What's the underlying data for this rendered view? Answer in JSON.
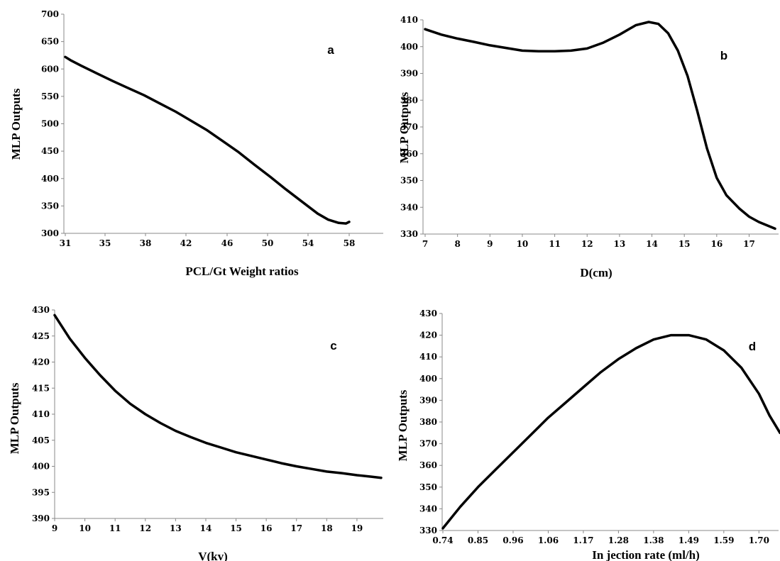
{
  "chart_data": [
    {
      "type": "line",
      "panel_label": "a",
      "xlabel": "PCL/Gt Weight ratios",
      "ylabel": "MLP Outputs",
      "x_tick_labels": [
        "31",
        "35",
        "38",
        "42",
        "46",
        "50",
        "54",
        "58"
      ],
      "y_ticks": [
        300,
        350,
        400,
        450,
        500,
        550,
        600,
        650,
        700
      ],
      "ylim": [
        300,
        700
      ],
      "series": [
        {
          "x": [
            31,
            31.5,
            32.5,
            34,
            35.5,
            37,
            38.5,
            40,
            41.5,
            43,
            44.5,
            46,
            47.5,
            49,
            50.5,
            52,
            53.5,
            55,
            56,
            57,
            57.7,
            58
          ],
          "values": [
            622,
            616,
            606,
            592,
            578,
            565,
            552,
            537,
            522,
            505,
            488,
            468,
            448,
            425,
            403,
            380,
            358,
            336,
            325,
            319,
            318,
            321
          ]
        }
      ]
    },
    {
      "type": "line",
      "panel_label": "b",
      "xlabel": "D(cm)",
      "ylabel": "MLP Outputs",
      "x_tick_labels": [
        "7",
        "8",
        "9",
        "10",
        "11",
        "12",
        "13",
        "14",
        "15",
        "16",
        "17"
      ],
      "x_tick_values": [
        7,
        8,
        9,
        10,
        11,
        12,
        13,
        14,
        15,
        16,
        17
      ],
      "xlim": [
        7,
        17.8
      ],
      "y_ticks": [
        330,
        340,
        350,
        360,
        370,
        380,
        390,
        400,
        410
      ],
      "ylim": [
        330,
        410
      ],
      "series": [
        {
          "x": [
            7,
            7.5,
            8,
            8.5,
            9,
            9.5,
            10,
            10.5,
            11,
            11.5,
            12,
            12.5,
            13,
            13.5,
            13.9,
            14.2,
            14.5,
            14.8,
            15.1,
            15.4,
            15.7,
            16,
            16.3,
            16.7,
            17,
            17.3,
            17.8
          ],
          "values": [
            406.5,
            404.5,
            403,
            401.8,
            400.5,
            399.5,
            398.5,
            398.3,
            398.3,
            398.5,
            399.3,
            401.5,
            404.5,
            408,
            409.2,
            408.5,
            405,
            398.5,
            389,
            376,
            362,
            351,
            344.5,
            339.5,
            336.5,
            334.5,
            332
          ]
        }
      ]
    },
    {
      "type": "line",
      "panel_label": "c",
      "xlabel": "V(kv)",
      "ylabel": "MLP Outputs",
      "x_tick_labels": [
        "9",
        "10",
        "11",
        "12",
        "13",
        "14",
        "15",
        "16",
        "17",
        "18",
        "19"
      ],
      "x_tick_values": [
        9,
        10,
        11,
        12,
        13,
        14,
        15,
        16,
        17,
        18,
        19
      ],
      "xlim": [
        9,
        19.8
      ],
      "y_ticks": [
        390,
        395,
        400,
        405,
        410,
        415,
        420,
        425,
        430
      ],
      "ylim": [
        390,
        430
      ],
      "series": [
        {
          "x": [
            9,
            9.5,
            10,
            10.5,
            11,
            11.5,
            12,
            12.5,
            13,
            13.5,
            14,
            14.5,
            15,
            15.5,
            16,
            16.5,
            17,
            17.5,
            18,
            18.5,
            19,
            19.5,
            19.8
          ],
          "values": [
            429,
            424.5,
            420.8,
            417.5,
            414.5,
            412,
            410,
            408.3,
            406.8,
            405.6,
            404.5,
            403.6,
            402.7,
            402,
            401.3,
            400.6,
            400,
            399.5,
            399,
            398.7,
            398.3,
            398,
            397.8
          ]
        }
      ]
    },
    {
      "type": "line",
      "panel_label": "d",
      "xlabel": "In jection rate (ml/h)",
      "ylabel": "MLP Outputs",
      "x_tick_labels": [
        "0.74",
        "0.85",
        "0.96",
        "1.06",
        "1.17",
        "1.28",
        "1.38",
        "1.49",
        "1.59",
        "1.70"
      ],
      "y_ticks": [
        330,
        340,
        350,
        360,
        370,
        380,
        390,
        400,
        410,
        420,
        430
      ],
      "ylim": [
        330,
        430
      ],
      "series": [
        {
          "x": [
            0,
            0.5,
            1,
            1.5,
            2,
            2.5,
            3,
            3.5,
            4,
            4.5,
            5,
            5.5,
            6,
            6.5,
            7,
            7.5,
            8,
            8.5,
            9,
            9.3,
            9.6
          ],
          "values": [
            331,
            341,
            350,
            358,
            366,
            374,
            382,
            389,
            396,
            403,
            409,
            414,
            418,
            420,
            420,
            418,
            413,
            405,
            393,
            383,
            375
          ]
        }
      ]
    }
  ]
}
